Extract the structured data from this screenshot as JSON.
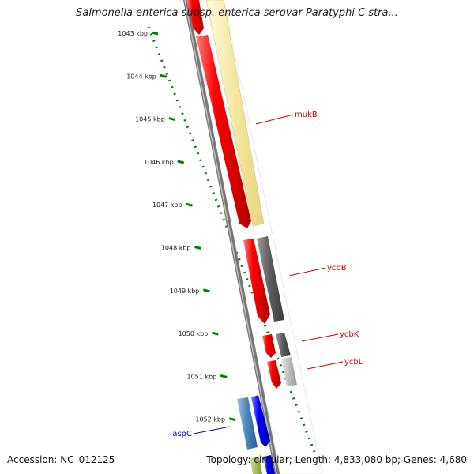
{
  "title": "Salmonella enterica subsp. enterica serovar Paratyphi C stra...",
  "footer": {
    "accession": "Accession: NC_012125",
    "summary": "Topology: circular; Length: 4,833,080 bp; Genes: 4,680"
  },
  "colors": {
    "ruler": "#008000",
    "backbone": "#808080",
    "forward_gene": "#ff0000",
    "reverse_gene": "#ffcc00",
    "aspC_label": "#0000cc",
    "gene_label": "#cc0000"
  },
  "ruler": {
    "ticks": [
      "1043 kbp",
      "1044 kbp",
      "1045 kbp",
      "1046 kbp",
      "1047 kbp",
      "1048 kbp",
      "1049 kbp",
      "1050 kbp",
      "1051 kbp",
      "1052 kbp"
    ]
  },
  "gene_labels": [
    "mukB",
    "ycbB",
    "ycbK",
    "ycbL",
    "aspC"
  ]
}
